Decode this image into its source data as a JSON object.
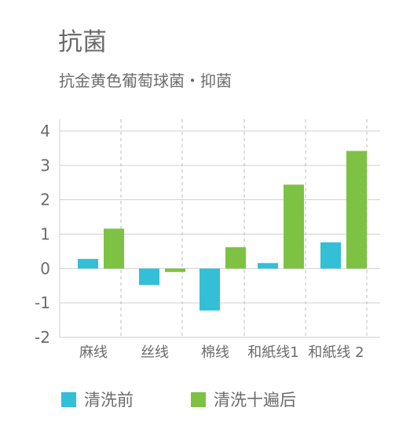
{
  "header": {
    "title": "抗菌",
    "subtitle": "抗金黄色葡萄球菌・抑菌"
  },
  "colors": {
    "before": "#33bfd6",
    "after": "#7dc242",
    "grid": "#cfcfcf",
    "divider": "#bdbdbd",
    "text": "#6b6b6b"
  },
  "chart_data": {
    "type": "bar",
    "title": "抗菌",
    "subtitle": "抗金黄色葡萄球菌・抑菌",
    "xlabel": "",
    "ylabel": "",
    "categories": [
      "麻线",
      "丝线",
      "棉线",
      "和紙线1",
      "和紙线 2"
    ],
    "series": [
      {
        "name": "清洗前",
        "color": "#33bfd6",
        "values": [
          0.28,
          -0.48,
          -1.22,
          0.16,
          0.76
        ]
      },
      {
        "name": "清洗十遍后",
        "color": "#7dc242",
        "values": [
          1.16,
          -0.1,
          0.62,
          2.44,
          3.42
        ]
      }
    ],
    "ylim": [
      -2,
      4
    ],
    "yticks": [
      4,
      3,
      2,
      1,
      0,
      -1,
      -2
    ],
    "ytick_labels": [
      "4",
      "3",
      "2",
      "1",
      "0",
      "-1",
      "-2"
    ],
    "grid": true,
    "legend_position": "bottom-left"
  }
}
